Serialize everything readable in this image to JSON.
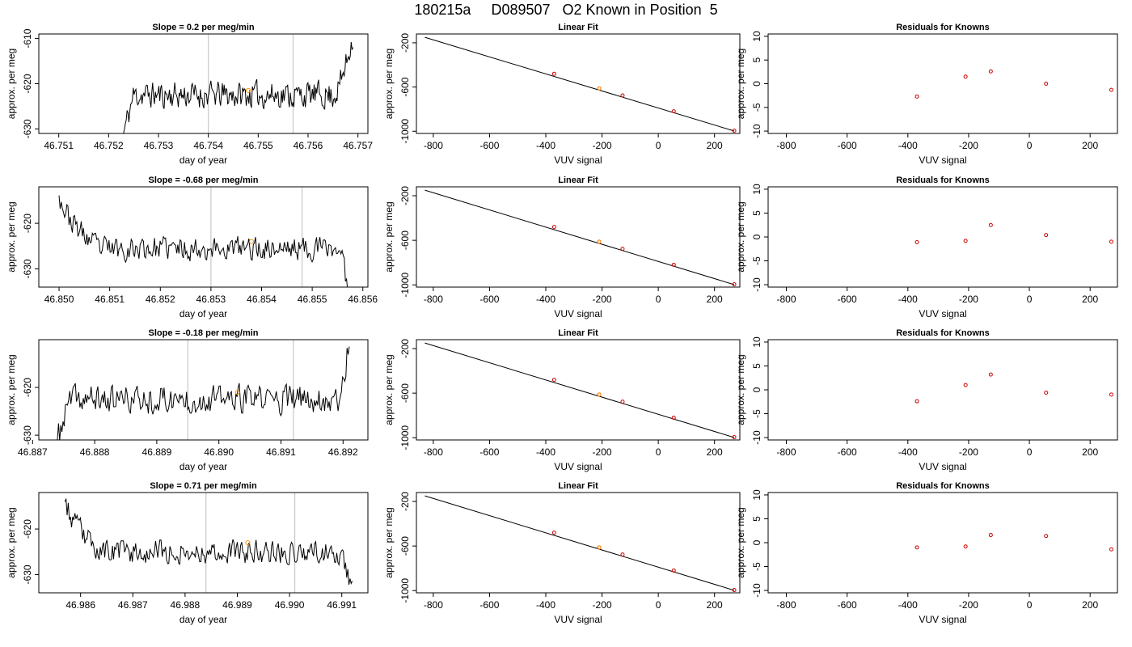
{
  "title": "180215a     D089507   O2 Known in Position  5",
  "labels": {
    "x_time": "day of year",
    "y_permeg": "approx. per meg",
    "x_vuv": "VUV signal",
    "fit_title": "Linear Fit",
    "resid_title": "Residuals for Knowns"
  },
  "colors": {
    "trace": "#000000",
    "marker": "#ff8c00",
    "vline": "#c8c8c8",
    "fit_points": "#cc0000",
    "resid_points": "#cc0000"
  },
  "chart_data": [
    {
      "type": "line",
      "title": "Slope =  0.2  per meg/min",
      "xlabel": "day of year",
      "ylabel": "approx. per meg",
      "xlim": [
        46.7506,
        46.7572
      ],
      "ylim": [
        -631,
        -609
      ],
      "xticks": [
        "46.751",
        "46.752",
        "46.753",
        "46.754",
        "46.755",
        "46.756",
        "46.757"
      ],
      "yticks": [
        "-630",
        "-620",
        "-610"
      ],
      "trace": {
        "x_start": 46.7523,
        "x_end": 46.7569,
        "rise_days": 0.0002,
        "start_level": -631,
        "baseline": -622.5,
        "end_level": -609,
        "noise": 3.0,
        "tail_drop": false,
        "tail_start": 46.7565,
        "seed": 11
      },
      "vlines": [
        46.754,
        46.7557
      ],
      "marker": [
        46.7548,
        -621.5
      ]
    },
    {
      "type": "line",
      "title": "Slope =  -0.68  per meg/min",
      "xlabel": "day of year",
      "ylabel": "approx. per meg",
      "xlim": [
        46.8496,
        46.8561
      ],
      "ylim": [
        -634,
        -612
      ],
      "xticks": [
        "46.850",
        "46.851",
        "46.852",
        "46.853",
        "46.854",
        "46.855",
        "46.856"
      ],
      "yticks": [
        "-630",
        "-620"
      ],
      "trace": {
        "x_start": 46.85,
        "x_end": 46.8557,
        "rise_days": 0.0008,
        "start_level": -612,
        "baseline": -625.5,
        "end_level": -634,
        "noise": 2.6,
        "tail_drop": true,
        "tail_start": 46.8555,
        "seed": 23
      },
      "vlines": [
        46.853,
        46.8548
      ],
      "marker": [
        46.8538,
        -624
      ]
    },
    {
      "type": "line",
      "title": "Slope =  -0.18  per meg/min",
      "xlabel": "day of year",
      "ylabel": "approx. per meg",
      "xlim": [
        46.8871,
        46.8924
      ],
      "ylim": [
        -631,
        -610
      ],
      "xticks": [
        "46.887",
        "46.888",
        "46.889",
        "46.890",
        "46.891",
        "46.892"
      ],
      "yticks": [
        "-630",
        "-620"
      ],
      "trace": {
        "x_start": 46.8874,
        "x_end": 46.8921,
        "rise_days": 0.0002,
        "start_level": -631,
        "baseline": -622.5,
        "end_level": -610,
        "noise": 3.0,
        "tail_drop": false,
        "tail_start": 46.8919,
        "seed": 37
      },
      "vlines": [
        46.8895,
        46.8912
      ],
      "marker": [
        46.8903,
        -621
      ]
    },
    {
      "type": "line",
      "title": "Slope =  0.71  per meg/min",
      "xlabel": "day of year",
      "ylabel": "approx. per meg",
      "xlim": [
        46.9852,
        46.9915
      ],
      "ylim": [
        -634,
        -612
      ],
      "xticks": [
        "46.986",
        "46.987",
        "46.988",
        "46.989",
        "46.990",
        "46.991"
      ],
      "yticks": [
        "-630",
        "-620"
      ],
      "trace": {
        "x_start": 46.9857,
        "x_end": 46.9912,
        "rise_days": 0.0007,
        "start_level": -612,
        "baseline": -625,
        "end_level": -634,
        "noise": 2.6,
        "tail_drop": true,
        "tail_start": 46.9909,
        "seed": 53
      },
      "vlines": [
        46.9884,
        46.9901
      ],
      "marker": [
        46.9892,
        -623
      ]
    },
    {
      "type": "scatter",
      "title": "Linear Fit",
      "xlabel": "VUV signal",
      "ylabel": "approx. per meg",
      "xlim": [
        -860,
        290
      ],
      "ylim": [
        -1020,
        -120
      ],
      "xticks": [
        "-800",
        "-600",
        "-400",
        "-200",
        "0",
        "200"
      ],
      "yticks": [
        "-200",
        "-600",
        "-1000"
      ],
      "fit_line": [
        [
          -830,
          -150
        ],
        [
          270,
          -998
        ]
      ],
      "points": [
        [
          -370,
          -480
        ],
        [
          -210,
          -613
        ],
        [
          -127,
          -676
        ],
        [
          55,
          -820
        ],
        [
          270,
          -995
        ]
      ]
    },
    {
      "type": "scatter",
      "title": "Residuals for Knowns",
      "xlabel": "VUV signal",
      "ylabel": "approx. per meg",
      "xlim": [
        -860,
        290
      ],
      "ylim": [
        -10.5,
        10.5
      ],
      "xticks": [
        "-800",
        "-600",
        "-400",
        "-200",
        "0",
        "200"
      ],
      "yticks": [
        "-10",
        "-5",
        "0",
        "5",
        "10"
      ],
      "points": [
        [
          -370,
          -2.7
        ],
        [
          -210,
          1.5
        ],
        [
          -127,
          2.6
        ],
        [
          55,
          0.0
        ],
        [
          270,
          -1.3
        ]
      ]
    },
    {
      "type": "scatter",
      "title": "Residuals for Knowns",
      "xlabel": "VUV signal",
      "ylabel": "approx. per meg",
      "xlim": [
        -860,
        290
      ],
      "ylim": [
        -10.5,
        10.5
      ],
      "xticks": [
        "-800",
        "-600",
        "-400",
        "-200",
        "0",
        "200"
      ],
      "yticks": [
        "-10",
        "-5",
        "0",
        "5",
        "10"
      ],
      "points": [
        [
          -370,
          -1.1
        ],
        [
          -210,
          -0.8
        ],
        [
          -127,
          2.5
        ],
        [
          55,
          0.4
        ],
        [
          270,
          -1.0
        ]
      ]
    },
    {
      "type": "scatter",
      "title": "Residuals for Knowns",
      "xlabel": "VUV signal",
      "ylabel": "approx. per meg",
      "xlim": [
        -860,
        290
      ],
      "ylim": [
        -10.5,
        10.5
      ],
      "xticks": [
        "-800",
        "-600",
        "-400",
        "-200",
        "0",
        "200"
      ],
      "yticks": [
        "-10",
        "-5",
        "0",
        "5",
        "10"
      ],
      "points": [
        [
          -370,
          -2.4
        ],
        [
          -210,
          1.0
        ],
        [
          -127,
          3.2
        ],
        [
          55,
          -0.6
        ],
        [
          270,
          -1.0
        ]
      ]
    },
    {
      "type": "scatter",
      "title": "Residuals for Knowns",
      "xlabel": "VUV signal",
      "ylabel": "approx. per meg",
      "xlim": [
        -860,
        290
      ],
      "ylim": [
        -10.5,
        10.5
      ],
      "xticks": [
        "-800",
        "-600",
        "-400",
        "-200",
        "0",
        "200"
      ],
      "yticks": [
        "-10",
        "-5",
        "0",
        "5",
        "10"
      ],
      "points": [
        [
          -370,
          -1.0
        ],
        [
          -210,
          -0.8
        ],
        [
          -127,
          1.6
        ],
        [
          55,
          1.4
        ],
        [
          270,
          -1.4
        ]
      ]
    }
  ]
}
